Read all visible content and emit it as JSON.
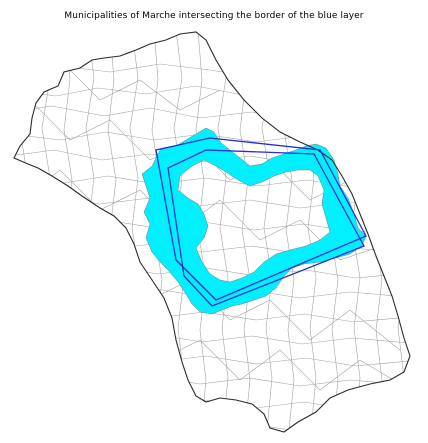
{
  "title": "Municipalities of Marche intersecting the border of the blue layer",
  "colors": {
    "background": "#ffffff",
    "municipality_border": "#9a9a9a",
    "region_outline": "#2b2b2b",
    "highlight_fill": "#00f0ff",
    "blue_layer": "#1f2fd6"
  }
}
